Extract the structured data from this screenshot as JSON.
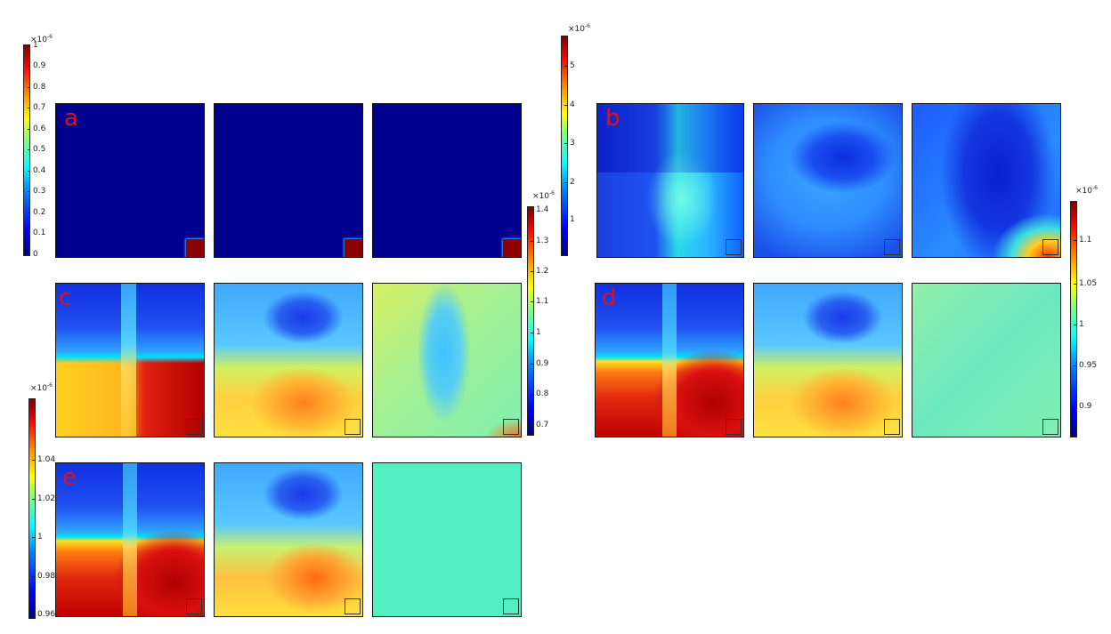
{
  "panel_labels": [
    "a",
    "b",
    "c",
    "d",
    "e"
  ],
  "colorbars": [
    {
      "id": "a",
      "exponent": "-6",
      "ticks": [
        "1",
        "0.9",
        "0.8",
        "0.7",
        "0.6",
        "0.5",
        "0.4",
        "0.3",
        "0.2",
        "0.1",
        "0"
      ]
    },
    {
      "id": "b",
      "exponent": "-6",
      "ticks": [
        "5",
        "4",
        "3",
        "2",
        "1"
      ]
    },
    {
      "id": "c",
      "exponent": "-6",
      "ticks": [
        "1.4",
        "1.3",
        "1.2",
        "1.1",
        "1",
        "0.9",
        "0.8",
        "0.7"
      ]
    },
    {
      "id": "d",
      "exponent": "-6",
      "ticks": [
        "1.1",
        "1.05",
        "1",
        "0.95",
        "0.9"
      ]
    },
    {
      "id": "e",
      "exponent": "-6",
      "ticks": [
        "1.04",
        "1.02",
        "1",
        "0.98",
        "0.96"
      ]
    }
  ],
  "colors": {
    "label": "#e0101a",
    "frame": "#111111"
  }
}
